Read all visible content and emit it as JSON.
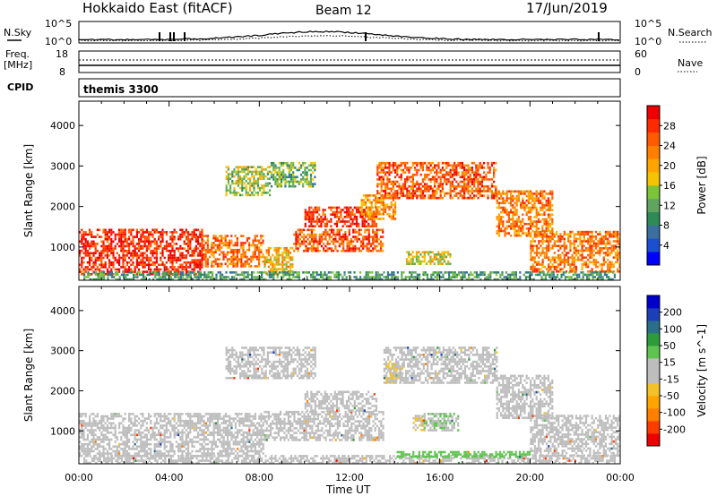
{
  "header": {
    "site_title": "Hokkaido East (fitACF)",
    "beam": "Beam 12",
    "date": "17/Jun/2019"
  },
  "summary": {
    "nsky_label": "N.Sky",
    "nsky_ticks": [
      "10^5",
      "10^0"
    ],
    "nsearch_label": "N.Search",
    "nsearch_ticks": [
      "10^5",
      "10^0"
    ],
    "freq_label": "Freq.",
    "freq_unit": "[MHz]",
    "freq_ticks": [
      "18",
      "8"
    ],
    "nave_label": "Nave",
    "nave_ticks": [
      "60",
      "0"
    ],
    "cpid_label": "CPID",
    "cpid_value": "themis 3300"
  },
  "colors": {
    "power": [
      "#0000ff",
      "#1a4fd0",
      "#3a6fa0",
      "#2e8b57",
      "#5fa55f",
      "#7cc43a",
      "#f5c400",
      "#ffa500",
      "#ff7f00",
      "#ff5a00",
      "#ff2a00",
      "#ee0000"
    ],
    "velocity": [
      "#ee0000",
      "#ff3b00",
      "#ff7f00",
      "#ffa500",
      "#f2c228",
      "#bdbdbd",
      "#bdbdbd",
      "#5fc44f",
      "#2e9b3a",
      "#2a6f8a",
      "#1c3fb8",
      "#0000cc"
    ]
  },
  "chart_data": [
    {
      "type": "heatmap",
      "title": "Power",
      "xlabel": "Time UT",
      "ylabel": "Slant Range [km]",
      "x_ticks": [
        "00:00",
        "04:00",
        "08:00",
        "12:00",
        "16:00",
        "20:00",
        "00:00"
      ],
      "y_ticks": [
        "1000",
        "2000",
        "3000",
        "4000"
      ],
      "ylim": [
        180,
        4600
      ],
      "xlim_hours": [
        0,
        24
      ],
      "colorbar": {
        "label": "Power [dB]",
        "ticks": [
          "4",
          "8",
          "12",
          "16",
          "20",
          "24",
          "28"
        ],
        "range": [
          0,
          30
        ]
      },
      "regions": [
        {
          "t0": 0.0,
          "t1": 5.5,
          "r0": 350,
          "r1": 1450,
          "v": 27
        },
        {
          "t0": 5.5,
          "t1": 8.2,
          "r0": 500,
          "r1": 1300,
          "v": 22
        },
        {
          "t0": 8.2,
          "t1": 9.5,
          "r0": 350,
          "r1": 1000,
          "v": 18
        },
        {
          "t0": 9.5,
          "t1": 13.5,
          "r0": 900,
          "r1": 1450,
          "v": 24
        },
        {
          "t0": 10.0,
          "t1": 13.2,
          "r0": 1500,
          "r1": 2000,
          "v": 26
        },
        {
          "t0": 13.2,
          "t1": 18.5,
          "r0": 2200,
          "r1": 3100,
          "v": 24
        },
        {
          "t0": 12.5,
          "t1": 14.0,
          "r0": 1700,
          "r1": 2300,
          "v": 20
        },
        {
          "t0": 18.5,
          "t1": 21.0,
          "r0": 1300,
          "r1": 2400,
          "v": 22
        },
        {
          "t0": 20.0,
          "t1": 24.0,
          "r0": 400,
          "r1": 1400,
          "v": 22
        },
        {
          "t0": 6.5,
          "t1": 8.5,
          "r0": 2300,
          "r1": 3000,
          "v": 14
        },
        {
          "t0": 8.5,
          "t1": 10.5,
          "r0": 2500,
          "r1": 3100,
          "v": 12
        },
        {
          "t0": 14.5,
          "t1": 16.5,
          "r0": 600,
          "r1": 900,
          "v": 16
        },
        {
          "t0": 0.2,
          "t1": 23.8,
          "r0": 180,
          "r1": 400,
          "v": 10
        }
      ]
    },
    {
      "type": "heatmap",
      "title": "Velocity",
      "xlabel": "Time UT",
      "ylabel": "Slant Range [km]",
      "x_ticks": [
        "00:00",
        "04:00",
        "08:00",
        "12:00",
        "16:00",
        "20:00",
        "00:00"
      ],
      "y_ticks": [
        "1000",
        "2000",
        "3000",
        "4000"
      ],
      "ylim": [
        180,
        4600
      ],
      "xlim_hours": [
        0,
        24
      ],
      "colorbar": {
        "label": "Velocity [m s^-1]",
        "ticks": [
          "200",
          "100",
          "50",
          "15",
          "-15",
          "-50",
          "-100",
          "-200"
        ],
        "range": [
          -250,
          250
        ]
      },
      "regions": [
        {
          "t0": 0.0,
          "t1": 8.2,
          "r0": 350,
          "r1": 1450,
          "v": 0
        },
        {
          "t0": 8.2,
          "t1": 13.5,
          "r0": 800,
          "r1": 1500,
          "v": 0
        },
        {
          "t0": 10.0,
          "t1": 13.2,
          "r0": 1500,
          "r1": 2000,
          "v": 0
        },
        {
          "t0": 13.5,
          "t1": 18.5,
          "r0": 2200,
          "r1": 3100,
          "v": 0
        },
        {
          "t0": 18.5,
          "t1": 21.0,
          "r0": 1300,
          "r1": 2400,
          "v": 0
        },
        {
          "t0": 20.0,
          "t1": 24.0,
          "r0": 400,
          "r1": 1400,
          "v": 0
        },
        {
          "t0": 6.5,
          "t1": 10.5,
          "r0": 2300,
          "r1": 3100,
          "v": 0
        },
        {
          "t0": 13.6,
          "t1": 14.3,
          "r0": 2200,
          "r1": 2700,
          "v": -40
        },
        {
          "t0": 15.2,
          "t1": 16.8,
          "r0": 1000,
          "r1": 1450,
          "v": 40
        },
        {
          "t0": 14.8,
          "t1": 15.3,
          "r0": 1050,
          "r1": 1400,
          "v": -40
        },
        {
          "t0": 0.2,
          "t1": 23.8,
          "r0": 180,
          "r1": 400,
          "v": -30
        },
        {
          "t0": 14.0,
          "t1": 20.0,
          "r0": 350,
          "r1": 500,
          "v": 60
        }
      ]
    }
  ]
}
